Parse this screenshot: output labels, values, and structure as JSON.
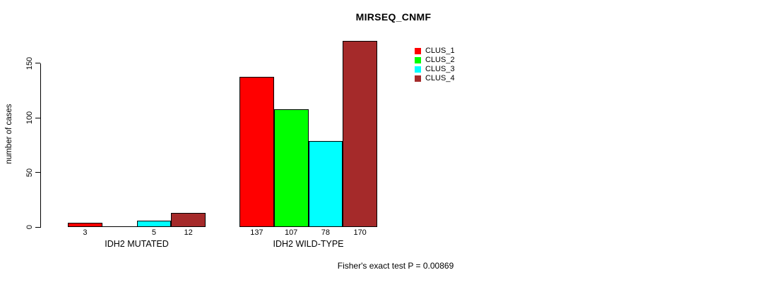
{
  "title": "MIRSEQ_CNMF",
  "ylabel": "number of cases",
  "annotation": "Fisher's exact test P = 0.00869",
  "legend": [
    {
      "label": "CLUS_1",
      "color": "#ff0000"
    },
    {
      "label": "CLUS_2",
      "color": "#00ff00"
    },
    {
      "label": "CLUS_3",
      "color": "#00ffff"
    },
    {
      "label": "CLUS_4",
      "color": "#a52a2a"
    }
  ],
  "chart_data": {
    "type": "bar",
    "title": "MIRSEQ_CNMF",
    "xlabel": "",
    "ylabel": "number of cases",
    "ylim": [
      0,
      170
    ],
    "yticks": [
      0,
      50,
      100,
      150
    ],
    "grid": false,
    "legend_position": "top-right",
    "categories": [
      "IDH2 MUTATED",
      "IDH2 WILD-TYPE"
    ],
    "series": [
      {
        "name": "CLUS_1",
        "color": "#ff0000",
        "values": [
          3,
          137
        ]
      },
      {
        "name": "CLUS_2",
        "color": "#00ff00",
        "values": [
          0,
          107
        ]
      },
      {
        "name": "CLUS_3",
        "color": "#00ffff",
        "values": [
          5,
          78
        ]
      },
      {
        "name": "CLUS_4",
        "color": "#a52a2a",
        "values": [
          12,
          170
        ]
      }
    ],
    "bar_value_labels": [
      [
        "3",
        "",
        "5",
        "12"
      ],
      [
        "137",
        "107",
        "78",
        "170"
      ]
    ],
    "annotation": "Fisher's exact test P = 0.00869"
  }
}
